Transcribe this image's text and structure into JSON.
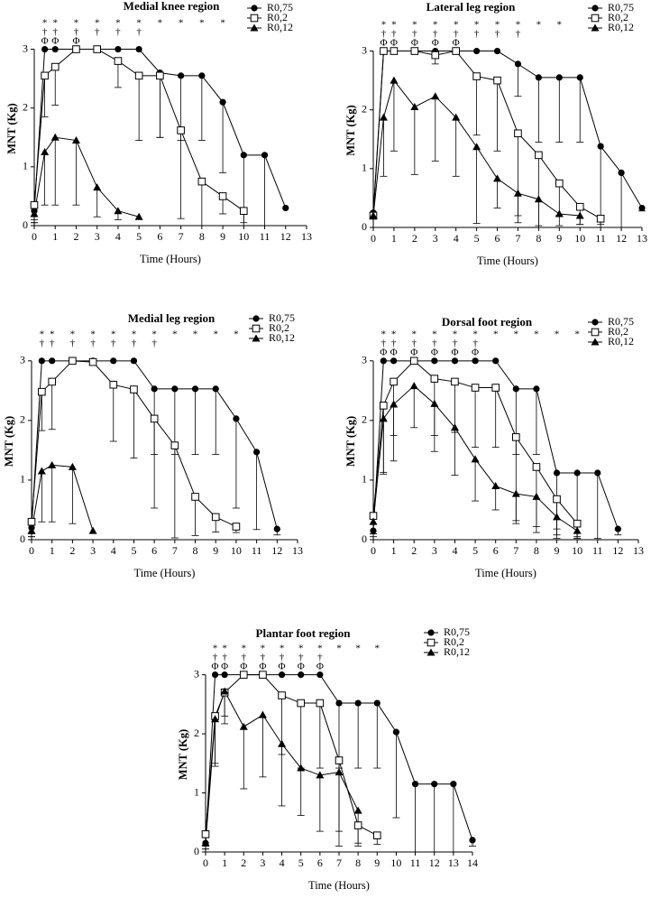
{
  "chart_data": [
    {
      "type": "line",
      "title": "Medial knee region",
      "xlabel": "Time (Hours)",
      "ylabel": "MNT (Kg)",
      "x": [
        0,
        0.5,
        1,
        2,
        3,
        4,
        5,
        6,
        7,
        8,
        9,
        10,
        11,
        12
      ],
      "xlim": [
        0,
        13
      ],
      "xticks": [
        0,
        1,
        2,
        3,
        4,
        5,
        6,
        7,
        8,
        9,
        10,
        11,
        12,
        13
      ],
      "ylim": [
        0,
        3.3
      ],
      "yticks": [
        0,
        1,
        2,
        3
      ],
      "series": [
        {
          "name": "R0,75",
          "color": "#000000",
          "marker": "circle",
          "values": [
            0.25,
            3,
            3,
            3,
            3,
            3,
            3,
            2.6,
            2.55,
            2.55,
            2.1,
            1.2,
            1.2,
            0.3
          ],
          "errors": [
            0.2,
            null,
            null,
            null,
            null,
            null,
            null,
            1.1,
            1.1,
            1.1,
            1.2,
            1.2,
            1.2,
            null
          ]
        },
        {
          "name": "R0,2",
          "color": "#000000",
          "marker": "square",
          "values": [
            0.35,
            2.55,
            2.7,
            3,
            3,
            2.8,
            2.55,
            2.55,
            1.62,
            0.75,
            0.5,
            0.25,
            null,
            null
          ],
          "errors": [
            0.3,
            0.7,
            0.65,
            null,
            null,
            0.45,
            1.1,
            1.05,
            1.5,
            0.75,
            0.3,
            0.2,
            null,
            null
          ]
        },
        {
          "name": "R0,12",
          "color": "#000000",
          "marker": "triangle",
          "values": [
            0.2,
            1.25,
            1.5,
            1.45,
            0.65,
            0.25,
            0.15,
            null,
            null,
            null,
            null,
            null,
            null,
            null
          ],
          "errors": [
            0.1,
            0.9,
            1.15,
            1.1,
            0.5,
            0.15,
            null,
            null,
            null,
            null,
            null,
            null,
            null,
            null
          ]
        }
      ],
      "annotations": [
        {
          "x": 0.5,
          "labels": [
            "*",
            "†",
            "Φ"
          ]
        },
        {
          "x": 1,
          "labels": [
            "*",
            "†",
            "Φ"
          ]
        },
        {
          "x": 2,
          "labels": [
            "*",
            "†",
            "Φ"
          ]
        },
        {
          "x": 3,
          "labels": [
            "*",
            "†"
          ]
        },
        {
          "x": 4,
          "labels": [
            "*",
            "†"
          ]
        },
        {
          "x": 5,
          "labels": [
            "*",
            "†"
          ]
        },
        {
          "x": 6,
          "labels": [
            "*"
          ]
        },
        {
          "x": 7,
          "labels": [
            "*"
          ]
        },
        {
          "x": 8,
          "labels": [
            "*"
          ]
        },
        {
          "x": 9,
          "labels": [
            "*"
          ]
        }
      ]
    },
    {
      "type": "line",
      "title": "Lateral leg region",
      "xlabel": "Time (Hours)",
      "ylabel": "MNT (Kg)",
      "x": [
        0,
        0.5,
        1,
        2,
        3,
        4,
        5,
        6,
        7,
        8,
        9,
        10,
        11,
        12,
        13
      ],
      "xlim": [
        0,
        13
      ],
      "xticks": [
        0,
        1,
        2,
        3,
        4,
        5,
        6,
        7,
        8,
        9,
        10,
        11,
        12,
        13
      ],
      "ylim": [
        0,
        3.3
      ],
      "yticks": [
        0,
        1,
        2,
        3
      ],
      "series": [
        {
          "name": "R0,75",
          "color": "#000000",
          "marker": "circle",
          "values": [
            0.25,
            3,
            3,
            3,
            3,
            3,
            3,
            3,
            2.78,
            2.55,
            2.55,
            2.55,
            1.38,
            0.93,
            0.33
          ],
          "errors": [
            0.1,
            null,
            null,
            null,
            null,
            null,
            null,
            null,
            0.55,
            1.1,
            1.1,
            1.1,
            1.38,
            0.93,
            0.05
          ]
        },
        {
          "name": "R0,2",
          "color": "#000000",
          "marker": "square",
          "values": [
            0.2,
            3,
            3,
            3,
            2.93,
            3,
            2.57,
            2.5,
            1.6,
            1.23,
            0.75,
            0.35,
            0.15,
            null,
            null
          ],
          "errors": [
            null,
            null,
            null,
            null,
            0.15,
            null,
            1.0,
            1.2,
            1.4,
            1.2,
            0.55,
            0.3,
            0.1,
            null,
            null
          ]
        },
        {
          "name": "R0,12",
          "color": "#000000",
          "marker": "triangle",
          "values": [
            0.2,
            1.87,
            2.5,
            2.05,
            2.23,
            1.87,
            1.37,
            0.83,
            0.58,
            0.48,
            0.23,
            0.2,
            null,
            null,
            null
          ],
          "errors": [
            null,
            1.0,
            1.2,
            1.15,
            1.1,
            1.0,
            1.3,
            0.5,
            0.5,
            0.48,
            0.2,
            0.15,
            null,
            null,
            null
          ]
        }
      ],
      "annotations": [
        {
          "x": 0.5,
          "labels": [
            "*",
            "†",
            "Φ"
          ]
        },
        {
          "x": 1,
          "labels": [
            "*",
            "†",
            "Φ"
          ]
        },
        {
          "x": 2,
          "labels": [
            "*",
            "†",
            "Φ"
          ]
        },
        {
          "x": 3,
          "labels": [
            "*",
            "†",
            "Φ"
          ]
        },
        {
          "x": 4,
          "labels": [
            "*",
            "†",
            "Φ"
          ]
        },
        {
          "x": 5,
          "labels": [
            "*",
            "†"
          ]
        },
        {
          "x": 6,
          "labels": [
            "*",
            "†"
          ]
        },
        {
          "x": 7,
          "labels": [
            "*",
            "†"
          ]
        },
        {
          "x": 8,
          "labels": [
            "*"
          ]
        },
        {
          "x": 9,
          "labels": [
            "*"
          ]
        }
      ]
    },
    {
      "type": "line",
      "title": "Medial leg region",
      "xlabel": "Time (Hours)",
      "ylabel": "MNT (Kg)",
      "x": [
        0,
        0.5,
        1,
        2,
        3,
        4,
        5,
        6,
        7,
        8,
        9,
        10,
        11,
        12
      ],
      "xlim": [
        0,
        13
      ],
      "xticks": [
        0,
        1,
        2,
        3,
        4,
        5,
        6,
        7,
        8,
        9,
        10,
        11,
        12,
        13
      ],
      "ylim": [
        0,
        3.3
      ],
      "yticks": [
        0,
        1,
        2,
        3
      ],
      "series": [
        {
          "name": "R0,75",
          "color": "#000000",
          "marker": "circle",
          "values": [
            0.2,
            3,
            3,
            3,
            3,
            3,
            3,
            2.53,
            2.53,
            2.53,
            2.53,
            2.03,
            1.47,
            0.18
          ],
          "errors": [
            0.15,
            null,
            null,
            null,
            null,
            null,
            null,
            1.1,
            1.1,
            1.1,
            1.1,
            1.5,
            1.3,
            0.1
          ]
        },
        {
          "name": "R0,2",
          "color": "#000000",
          "marker": "square",
          "values": [
            0.3,
            2.48,
            2.65,
            3,
            2.98,
            2.6,
            2.52,
            2.03,
            1.58,
            0.72,
            0.38,
            0.22,
            null,
            null
          ],
          "errors": [
            0.2,
            0.65,
            0.8,
            null,
            null,
            0.95,
            1.15,
            1.5,
            1.55,
            0.65,
            0.25,
            0.1,
            null,
            null
          ]
        },
        {
          "name": "R0,12",
          "color": "#000000",
          "marker": "triangle",
          "values": [
            0.15,
            1.15,
            1.25,
            1.22,
            0.15,
            null,
            null,
            null,
            null,
            null,
            null,
            null,
            null,
            null
          ],
          "errors": [
            0.1,
            0.85,
            0.95,
            0.95,
            null,
            null,
            null,
            null,
            null,
            null,
            null,
            null,
            null,
            null
          ]
        }
      ],
      "annotations": [
        {
          "x": 0.5,
          "labels": [
            "*",
            "†"
          ]
        },
        {
          "x": 1,
          "labels": [
            "*",
            "†"
          ]
        },
        {
          "x": 2,
          "labels": [
            "*",
            "†"
          ]
        },
        {
          "x": 3,
          "labels": [
            "*",
            "†"
          ]
        },
        {
          "x": 4,
          "labels": [
            "*",
            "†"
          ]
        },
        {
          "x": 5,
          "labels": [
            "*",
            "†"
          ]
        },
        {
          "x": 6,
          "labels": [
            "*",
            "†"
          ]
        },
        {
          "x": 7,
          "labels": [
            "*"
          ]
        },
        {
          "x": 8,
          "labels": [
            "*"
          ]
        },
        {
          "x": 9,
          "labels": [
            "*"
          ]
        },
        {
          "x": 10,
          "labels": [
            "*"
          ]
        }
      ]
    },
    {
      "type": "line",
      "title": "Dorsal foot region",
      "xlabel": "Time (Hours)",
      "ylabel": "MNT (Kg)",
      "x": [
        0,
        0.5,
        1,
        2,
        3,
        4,
        5,
        6,
        7,
        8,
        9,
        10,
        11,
        12
      ],
      "xlim": [
        0,
        13
      ],
      "xticks": [
        0,
        1,
        2,
        3,
        4,
        5,
        6,
        7,
        8,
        9,
        10,
        11,
        12,
        13
      ],
      "ylim": [
        0,
        3.3
      ],
      "yticks": [
        0,
        1,
        2,
        3
      ],
      "series": [
        {
          "name": "R0,75",
          "color": "#000000",
          "marker": "circle",
          "values": [
            0.15,
            3,
            3,
            3,
            3,
            3,
            3,
            3,
            2.53,
            2.53,
            1.12,
            1.12,
            1.12,
            0.18
          ],
          "errors": [
            0.1,
            null,
            null,
            null,
            null,
            null,
            null,
            null,
            1.1,
            1.1,
            1.1,
            1.1,
            1.1,
            0.1
          ]
        },
        {
          "name": "R0,2",
          "color": "#000000",
          "marker": "square",
          "values": [
            0.4,
            2.25,
            2.65,
            3,
            2.7,
            2.65,
            2.55,
            2.55,
            1.72,
            1.22,
            0.68,
            0.27,
            null,
            null
          ],
          "errors": [
            0.3,
            1.15,
            0.9,
            null,
            0.95,
            0.85,
            1.0,
            1.0,
            1.4,
            1.0,
            0.5,
            0.25,
            null,
            null
          ]
        },
        {
          "name": "R0,12",
          "color": "#000000",
          "marker": "triangle",
          "values": [
            0.3,
            2.03,
            2.27,
            2.58,
            2.28,
            1.88,
            1.35,
            0.9,
            0.77,
            0.72,
            0.38,
            0.15,
            null,
            null
          ],
          "errors": [
            0.2,
            0.9,
            0.95,
            0.7,
            0.8,
            0.8,
            0.7,
            0.4,
            0.5,
            0.6,
            0.3,
            0.1,
            null,
            null
          ]
        }
      ],
      "annotations": [
        {
          "x": 0.5,
          "labels": [
            "*",
            "†",
            "Φ"
          ]
        },
        {
          "x": 1,
          "labels": [
            "*",
            "†",
            "Φ"
          ]
        },
        {
          "x": 2,
          "labels": [
            "*",
            "†",
            "Φ"
          ]
        },
        {
          "x": 3,
          "labels": [
            "*",
            "†",
            "Φ"
          ]
        },
        {
          "x": 4,
          "labels": [
            "*",
            "†",
            "Φ"
          ]
        },
        {
          "x": 5,
          "labels": [
            "*",
            "†",
            "Φ"
          ]
        },
        {
          "x": 6,
          "labels": [
            "*"
          ]
        },
        {
          "x": 7,
          "labels": [
            "*"
          ]
        },
        {
          "x": 8,
          "labels": [
            "*"
          ]
        },
        {
          "x": 9,
          "labels": [
            "*"
          ]
        },
        {
          "x": 10,
          "labels": [
            "*"
          ]
        }
      ]
    },
    {
      "type": "line",
      "title": "Plantar foot region",
      "xlabel": "Time (Hours)",
      "ylabel": "MNT (Kg)",
      "x": [
        0,
        0.5,
        1,
        2,
        3,
        4,
        5,
        6,
        7,
        8,
        9,
        10,
        11,
        12,
        13,
        14
      ],
      "xlim": [
        0,
        14
      ],
      "xticks": [
        0,
        1,
        2,
        3,
        4,
        5,
        6,
        7,
        8,
        9,
        10,
        11,
        12,
        13,
        14
      ],
      "ylim": [
        0,
        3.3
      ],
      "yticks": [
        0,
        1,
        2,
        3
      ],
      "series": [
        {
          "name": "R0,75",
          "color": "#000000",
          "marker": "circle",
          "values": [
            0.15,
            3,
            3,
            3,
            3,
            3,
            3,
            3,
            2.52,
            2.52,
            2.52,
            2.03,
            1.15,
            1.15,
            1.15,
            0.2
          ],
          "errors": [
            0.1,
            null,
            null,
            null,
            null,
            null,
            null,
            null,
            1.1,
            1.1,
            1.1,
            1.45,
            1.15,
            1.15,
            1.15,
            0.1
          ]
        },
        {
          "name": "R0,2",
          "color": "#000000",
          "marker": "square",
          "values": [
            0.3,
            2.3,
            2.7,
            3,
            3,
            2.65,
            2.52,
            2.52,
            1.55,
            0.45,
            0.28,
            null,
            null,
            null,
            null,
            null
          ],
          "errors": [
            0.2,
            0.8,
            0.4,
            null,
            null,
            1.0,
            1.1,
            1.1,
            1.2,
            0.35,
            0.15,
            null,
            null,
            null,
            null,
            null
          ]
        },
        {
          "name": "R0,12",
          "color": "#000000",
          "marker": "triangle",
          "values": [
            0.15,
            2.25,
            2.72,
            2.12,
            2.32,
            1.83,
            1.42,
            1.3,
            1.35,
            0.7,
            null,
            null,
            null,
            null,
            null,
            null
          ],
          "errors": [
            0.1,
            0.8,
            0.55,
            1.05,
            1.05,
            1.05,
            0.8,
            0.95,
            1.25,
            0.55,
            null,
            null,
            null,
            null,
            null,
            null
          ]
        }
      ],
      "annotations": [
        {
          "x": 0.5,
          "labels": [
            "*",
            "†",
            "Φ"
          ]
        },
        {
          "x": 1,
          "labels": [
            "*",
            "†",
            "Φ"
          ]
        },
        {
          "x": 2,
          "labels": [
            "*",
            "†",
            "Φ"
          ]
        },
        {
          "x": 3,
          "labels": [
            "*",
            "†",
            "Φ"
          ]
        },
        {
          "x": 4,
          "labels": [
            "*",
            "†",
            "Φ"
          ]
        },
        {
          "x": 5,
          "labels": [
            "*",
            "†",
            "Φ"
          ]
        },
        {
          "x": 6,
          "labels": [
            "*",
            "†",
            "Φ"
          ]
        },
        {
          "x": 7,
          "labels": [
            "*"
          ]
        },
        {
          "x": 8,
          "labels": [
            "*"
          ]
        },
        {
          "x": 9,
          "labels": [
            "*"
          ]
        }
      ]
    }
  ]
}
